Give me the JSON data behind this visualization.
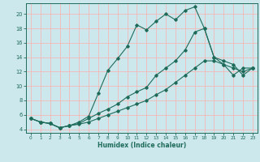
{
  "xlabel": "Humidex (Indice chaleur)",
  "bg_color": "#cce8ec",
  "grid_color": "#f5b8b8",
  "line_color": "#1e6b5a",
  "xlim": [
    -0.5,
    23.5
  ],
  "ylim": [
    3.5,
    21.5
  ],
  "yticks": [
    4,
    6,
    8,
    10,
    12,
    14,
    16,
    18,
    20
  ],
  "xticks": [
    0,
    1,
    2,
    3,
    4,
    5,
    6,
    7,
    8,
    9,
    10,
    11,
    12,
    13,
    14,
    15,
    16,
    17,
    18,
    19,
    20,
    21,
    22,
    23
  ],
  "line1_x": [
    0,
    1,
    2,
    3,
    4,
    5,
    6,
    7,
    8,
    9,
    10,
    11,
    12,
    13,
    14,
    15,
    16,
    17,
    18,
    19,
    20,
    21,
    22,
    23
  ],
  "line1_y": [
    5.5,
    5.0,
    4.8,
    4.2,
    4.5,
    5.0,
    5.8,
    9.0,
    12.2,
    13.8,
    15.5,
    18.5,
    17.8,
    19.0,
    20.0,
    19.2,
    20.5,
    21.0,
    18.0,
    14.0,
    13.0,
    11.5,
    12.5,
    12.5
  ],
  "line2_x": [
    0,
    1,
    2,
    3,
    4,
    5,
    6,
    7,
    8,
    9,
    10,
    11,
    12,
    13,
    14,
    15,
    16,
    17,
    18,
    19,
    20,
    21,
    22,
    23
  ],
  "line2_y": [
    5.5,
    5.0,
    4.8,
    4.2,
    4.5,
    4.8,
    5.5,
    6.2,
    6.8,
    7.5,
    8.5,
    9.2,
    9.8,
    11.5,
    12.5,
    13.5,
    15.0,
    17.5,
    18.0,
    14.0,
    13.5,
    13.0,
    11.5,
    12.5
  ],
  "line3_x": [
    0,
    1,
    2,
    3,
    4,
    5,
    6,
    7,
    8,
    9,
    10,
    11,
    12,
    13,
    14,
    15,
    16,
    17,
    18,
    19,
    20,
    21,
    22,
    23
  ],
  "line3_y": [
    5.5,
    5.0,
    4.8,
    4.2,
    4.5,
    4.7,
    5.0,
    5.5,
    6.0,
    6.5,
    7.0,
    7.5,
    8.0,
    8.8,
    9.5,
    10.5,
    11.5,
    12.5,
    13.5,
    13.5,
    13.0,
    12.5,
    12.0,
    12.5
  ]
}
